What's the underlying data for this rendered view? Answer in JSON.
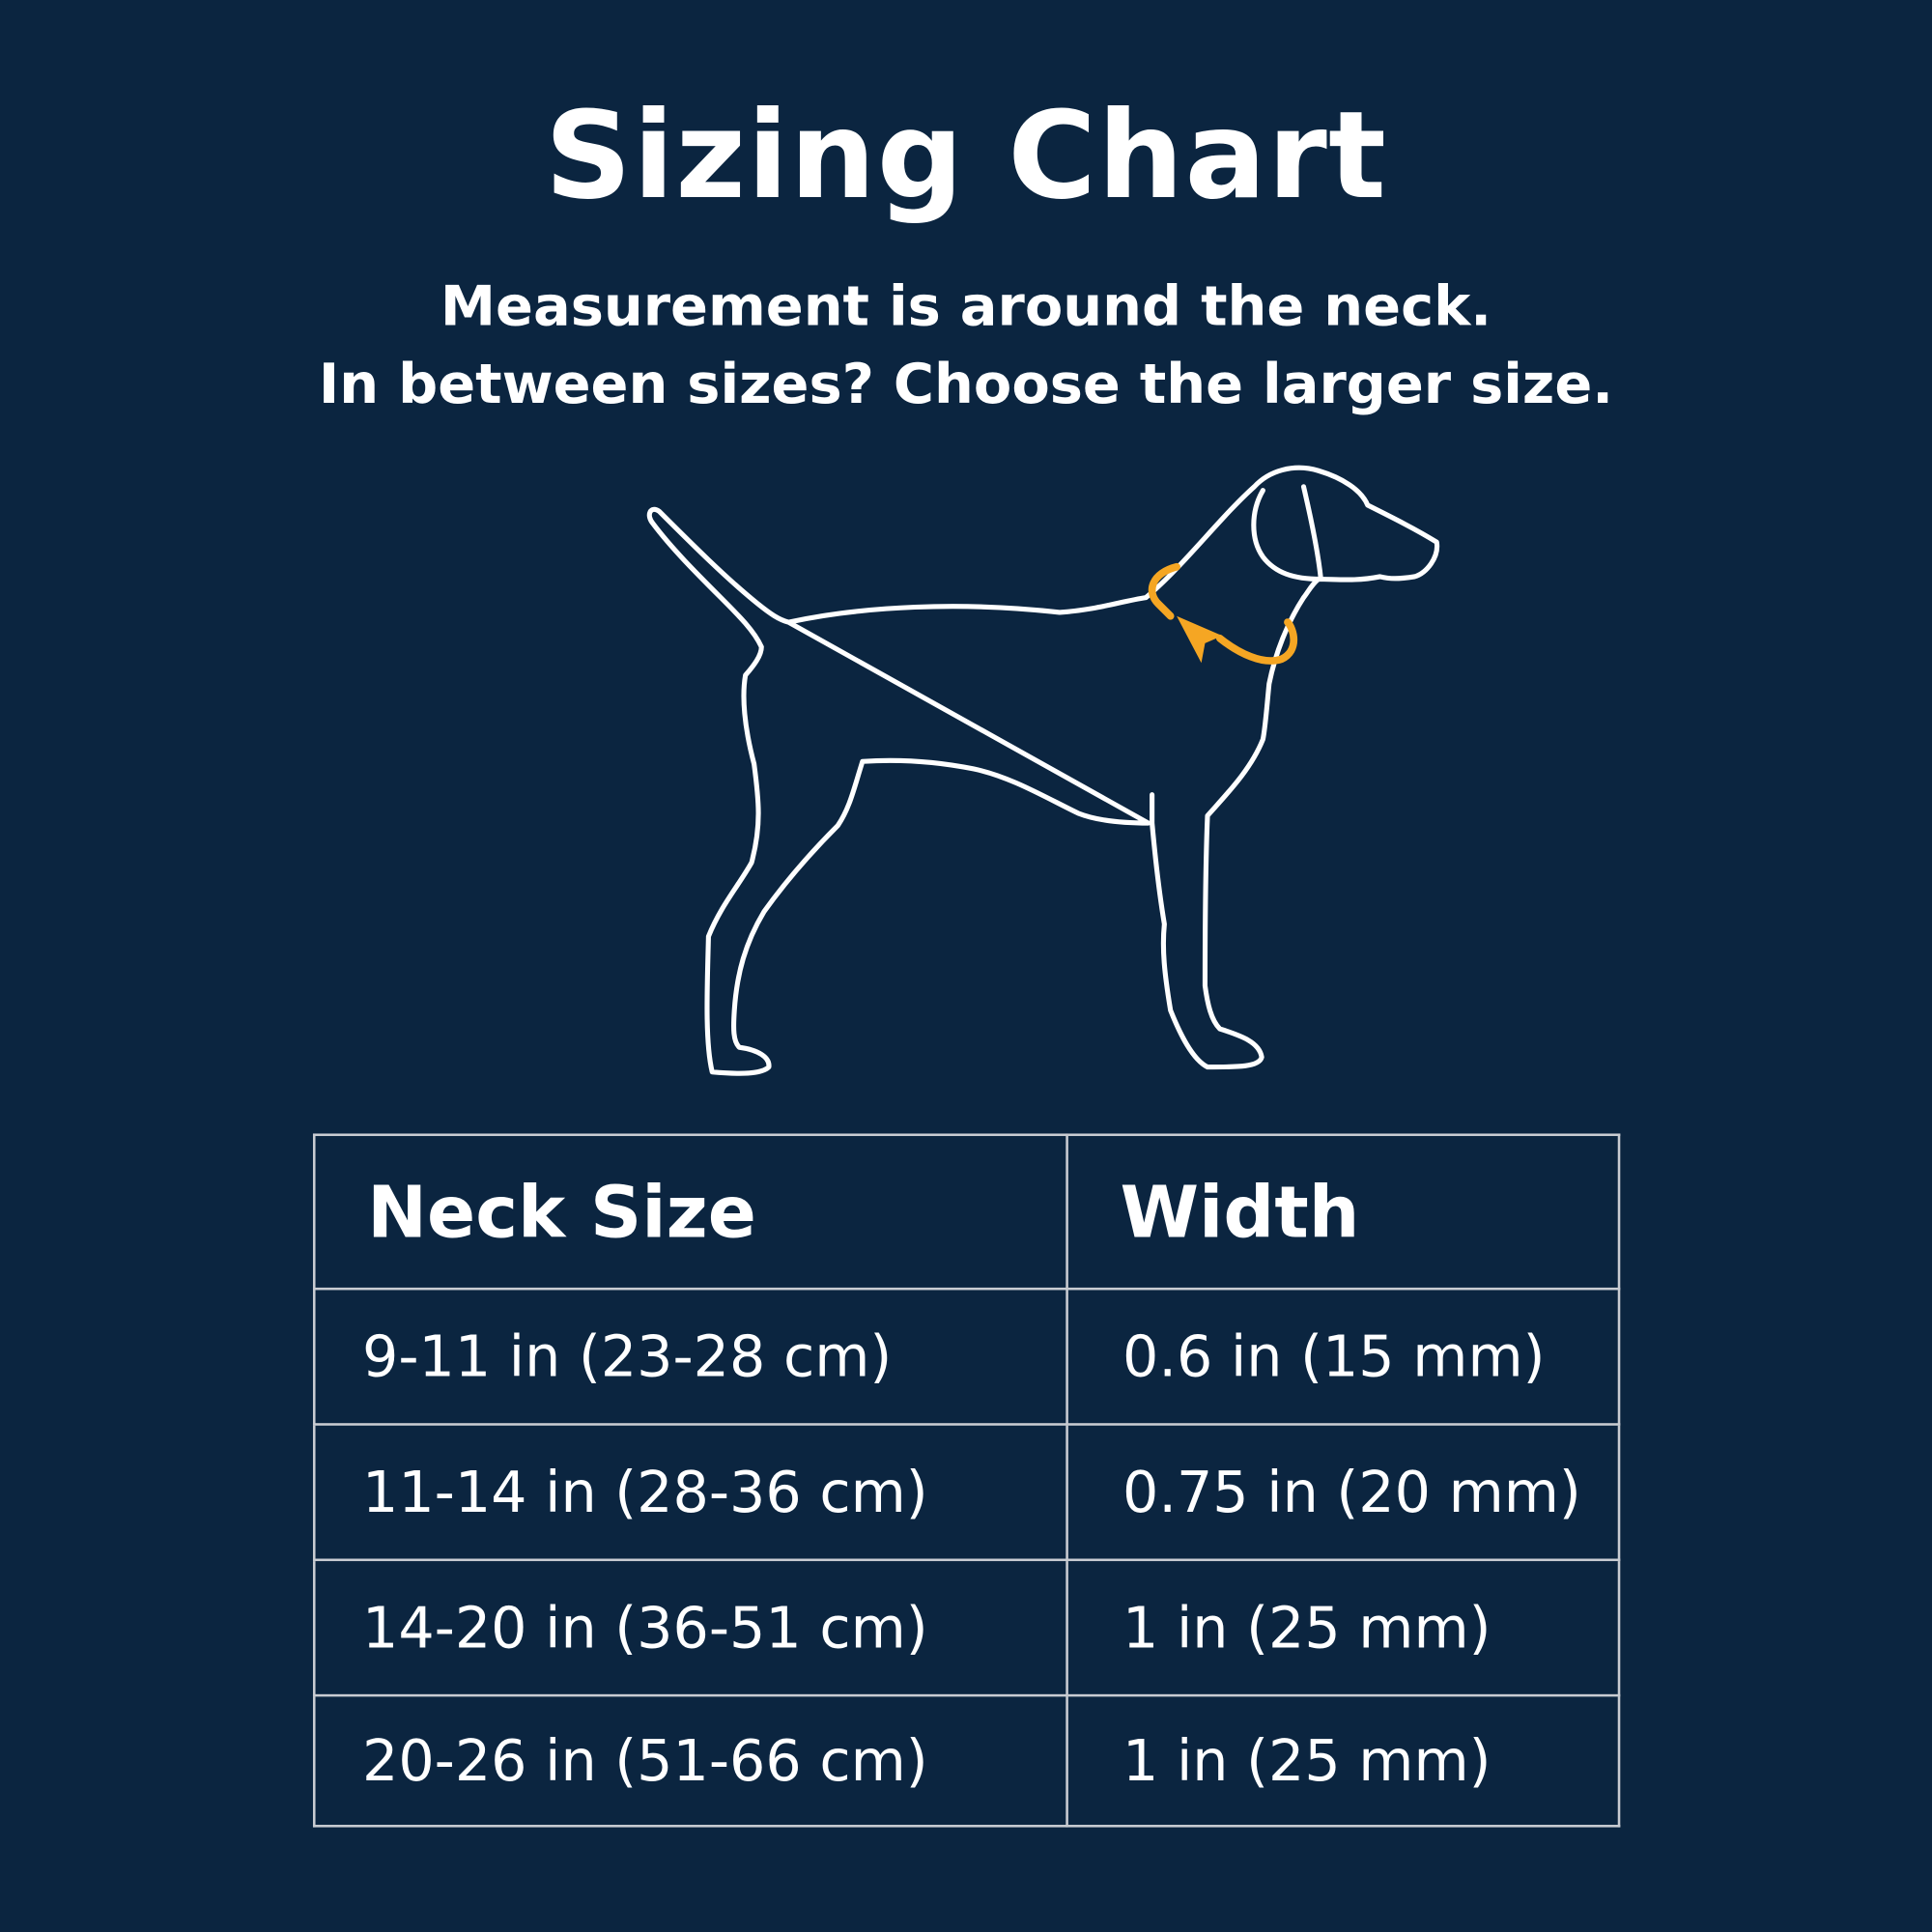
{
  "title": "Sizing Chart",
  "subtitle_lines": [
    "Measurement is around the neck.",
    "In between sizes? Choose the larger size."
  ],
  "illustration": {
    "subject": "dog-outline-icon",
    "accent_color": "#f5a623",
    "outline_color": "#ffffff"
  },
  "colors": {
    "background": "#0b2540",
    "text": "#ffffff",
    "table_border": "#c9ccd2"
  },
  "table": {
    "headers": [
      "Neck Size",
      "Width"
    ],
    "rows": [
      [
        "9-11 in (23-28 cm)",
        "0.6 in (15 mm)"
      ],
      [
        "11-14 in (28-36 cm)",
        "0.75 in (20 mm)"
      ],
      [
        "14-20 in (36-51 cm)",
        "1 in (25 mm)"
      ],
      [
        "20-26 in (51-66 cm)",
        "1 in (25 mm)"
      ]
    ]
  }
}
